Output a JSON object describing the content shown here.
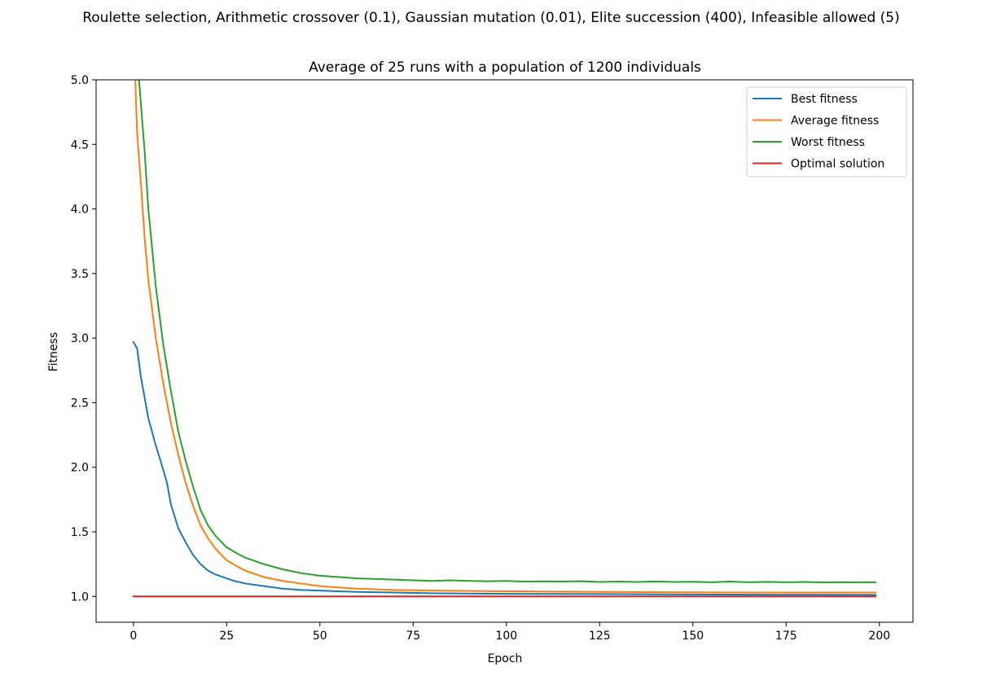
{
  "chart_data": {
    "type": "line",
    "suptitle": "Roulette selection, Arithmetic crossover (0.1), Gaussian mutation (0.01), Elite succession (400), Infeasible allowed (5)",
    "title": "Average of 25 runs with a population of 1200 individuals",
    "xlabel": "Epoch",
    "ylabel": "Fitness",
    "xlim": [
      -10,
      209
    ],
    "ylim": [
      0.8,
      5.0
    ],
    "xticks": [
      0,
      25,
      50,
      75,
      100,
      125,
      150,
      175,
      200
    ],
    "yticks": [
      1.0,
      1.5,
      2.0,
      2.5,
      3.0,
      3.5,
      4.0,
      4.5,
      5.0
    ],
    "xtick_labels": [
      "0",
      "25",
      "50",
      "75",
      "100",
      "125",
      "150",
      "175",
      "200"
    ],
    "ytick_labels": [
      "1.0",
      "1.5",
      "2.0",
      "2.5",
      "3.0",
      "3.5",
      "4.0",
      "4.5",
      "5.0"
    ],
    "grid": false,
    "legend": "top-right",
    "series": [
      {
        "name": "Best fitness",
        "color": "#1f77b4",
        "x": [
          0,
          1,
          2,
          4,
          6,
          8,
          9,
          10,
          12,
          14,
          16,
          18,
          20,
          22,
          25,
          27,
          30,
          35,
          40,
          45,
          50,
          55,
          60,
          70,
          80,
          100,
          125,
          150,
          175,
          199
        ],
        "y": [
          2.97,
          2.92,
          2.7,
          2.38,
          2.17,
          1.98,
          1.88,
          1.72,
          1.53,
          1.42,
          1.32,
          1.25,
          1.2,
          1.17,
          1.14,
          1.12,
          1.1,
          1.08,
          1.06,
          1.05,
          1.045,
          1.04,
          1.035,
          1.03,
          1.025,
          1.02,
          1.018,
          1.015,
          1.013,
          1.012
        ]
      },
      {
        "name": "Average fitness",
        "color": "#ff7f0e",
        "x": [
          0.5,
          1,
          2,
          3,
          4,
          6,
          8,
          10,
          12,
          14,
          16,
          18,
          20,
          22,
          25,
          28,
          30,
          35,
          40,
          45,
          50,
          55,
          60,
          70,
          80,
          100,
          125,
          150,
          175,
          199
        ],
        "y": [
          5.0,
          4.58,
          4.2,
          3.78,
          3.45,
          3.0,
          2.65,
          2.35,
          2.1,
          1.88,
          1.7,
          1.55,
          1.45,
          1.37,
          1.28,
          1.23,
          1.2,
          1.15,
          1.12,
          1.1,
          1.08,
          1.07,
          1.06,
          1.05,
          1.045,
          1.04,
          1.035,
          1.032,
          1.03,
          1.03
        ]
      },
      {
        "name": "Worst fitness",
        "color": "#2ca02c",
        "x": [
          1.5,
          3,
          4,
          6,
          8,
          10,
          12,
          14,
          16,
          18,
          20,
          22,
          25,
          28,
          30,
          35,
          40,
          45,
          50,
          55,
          60,
          65,
          70,
          75,
          80,
          85,
          90,
          95,
          100,
          105,
          110,
          115,
          120,
          125,
          130,
          135,
          140,
          145,
          150,
          155,
          160,
          165,
          170,
          175,
          180,
          185,
          190,
          195,
          199
        ],
        "y": [
          5.0,
          4.45,
          4.0,
          3.4,
          2.95,
          2.6,
          2.28,
          2.05,
          1.85,
          1.67,
          1.55,
          1.47,
          1.38,
          1.33,
          1.3,
          1.25,
          1.21,
          1.18,
          1.16,
          1.15,
          1.14,
          1.135,
          1.13,
          1.125,
          1.12,
          1.125,
          1.12,
          1.118,
          1.12,
          1.115,
          1.117,
          1.115,
          1.118,
          1.112,
          1.115,
          1.112,
          1.116,
          1.112,
          1.114,
          1.11,
          1.115,
          1.11,
          1.113,
          1.11,
          1.112,
          1.108,
          1.11,
          1.108,
          1.11
        ]
      },
      {
        "name": "Optimal solution",
        "color": "#d62728",
        "x": [
          0,
          199
        ],
        "y": [
          1.0,
          1.0
        ]
      }
    ]
  }
}
